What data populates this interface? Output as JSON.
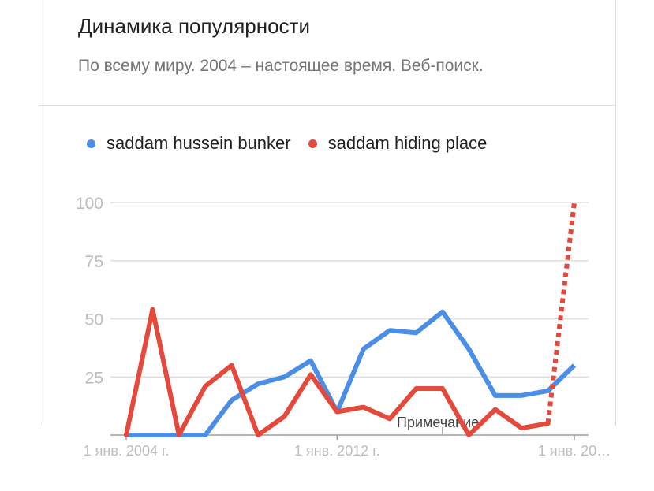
{
  "header": {
    "title": "Динамика популярности",
    "subtitle": "По всему миру. 2004 – настоящее время. Веб-поиск."
  },
  "chart_data": {
    "type": "line",
    "grid": true,
    "legend_position": "top-left",
    "ylim": [
      0,
      100
    ],
    "y_ticks": [
      "100",
      "75",
      "50",
      "25"
    ],
    "x_tick_labels": [
      "1 янв. 2004 г.",
      "1 янв. 2012 г.",
      "1 янв. 20…"
    ],
    "x_tick_index": [
      0,
      8,
      17
    ],
    "annotation": "Примечание",
    "annotation_index": 12,
    "partial_from_index": 16,
    "x_count": 18,
    "series": [
      {
        "name": "saddam hussein bunker",
        "color": "#4a8ee8",
        "values": [
          0,
          0,
          0,
          0,
          15,
          22,
          25,
          32,
          10,
          37,
          45,
          44,
          53,
          37,
          17,
          17,
          19,
          30
        ]
      },
      {
        "name": "saddam hiding place",
        "color": "#e4493c",
        "values": [
          0,
          54,
          0,
          21,
          30,
          0,
          8,
          26,
          10,
          12,
          7,
          20,
          20,
          0,
          11,
          3,
          5,
          100
        ]
      }
    ]
  }
}
